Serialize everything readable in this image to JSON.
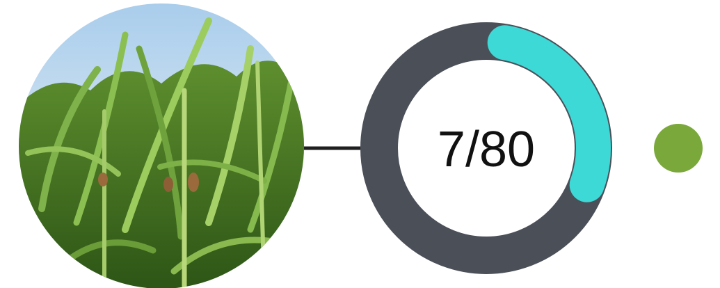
{
  "progress": {
    "label": "7/80"
  }
}
